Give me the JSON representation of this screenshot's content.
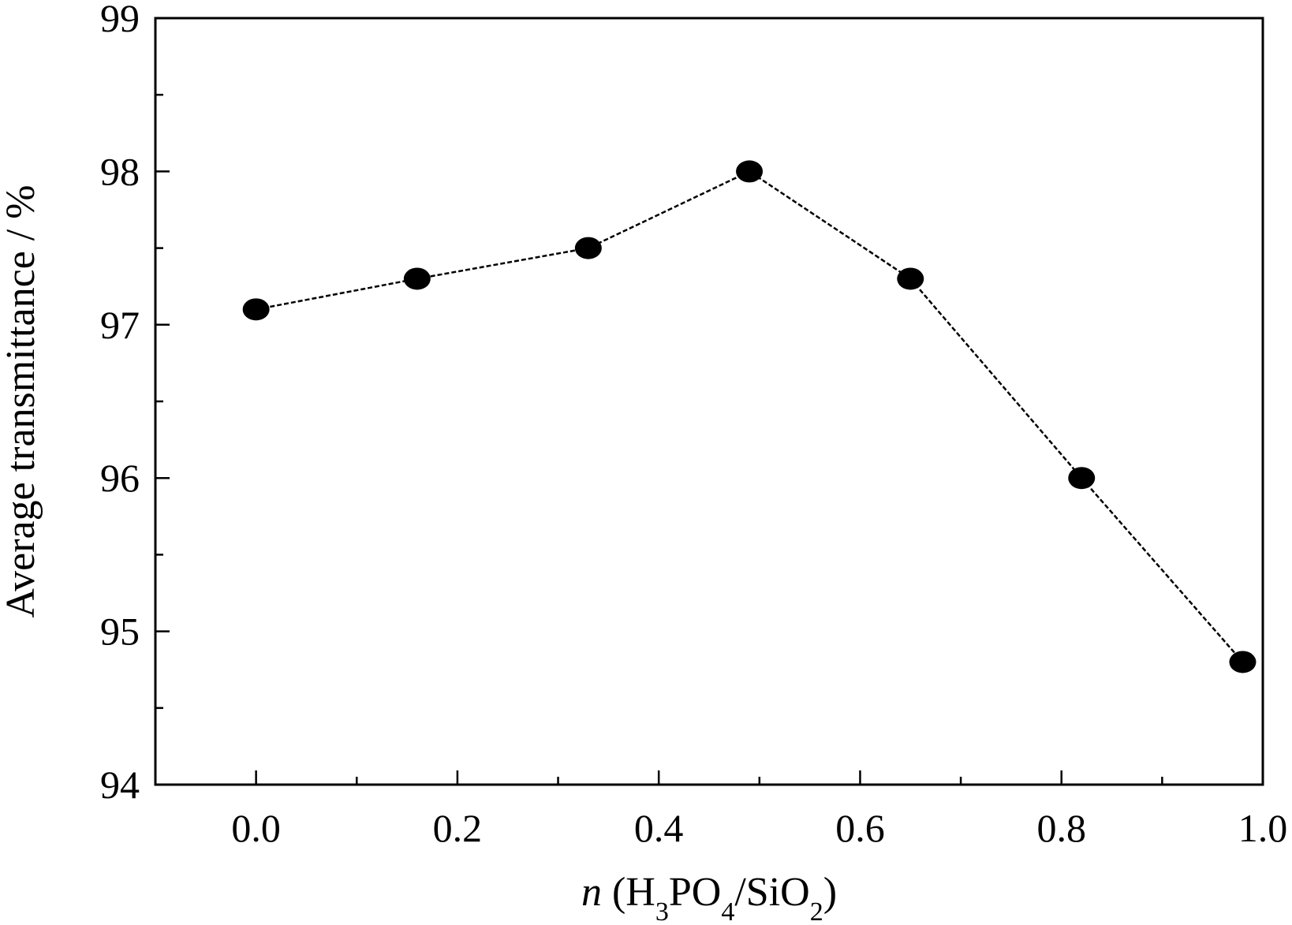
{
  "chart_data": {
    "type": "line",
    "title": "",
    "xlabel": {
      "italic": "n",
      "parts": [
        {
          "text": " (H",
          "sub": false
        },
        {
          "text": "3",
          "sub": true
        },
        {
          "text": "PO",
          "sub": false
        },
        {
          "text": "4",
          "sub": true
        },
        {
          "text": "/SiO",
          "sub": false
        },
        {
          "text": "2",
          "sub": true
        },
        {
          "text": ")",
          "sub": false
        }
      ]
    },
    "ylabel": "Average transmittance / %",
    "xlim": [
      -0.1,
      1.0
    ],
    "ylim": [
      94,
      99
    ],
    "x_ticks": [
      "0.0",
      "0.2",
      "0.4",
      "0.6",
      "0.8",
      "1.0"
    ],
    "x_tick_values": [
      0.0,
      0.2,
      0.4,
      0.6,
      0.8,
      1.0
    ],
    "x_minor_ticks": [
      0.1,
      0.3,
      0.5,
      0.7,
      0.9
    ],
    "y_ticks": [
      "94",
      "95",
      "96",
      "97",
      "98",
      "99"
    ],
    "y_tick_values": [
      94,
      95,
      96,
      97,
      98,
      99
    ],
    "y_minor_ticks": [
      94.5,
      95.5,
      96.5,
      97.5,
      98.5
    ],
    "grid": false,
    "series": [
      {
        "x": [
          0.0,
          0.16,
          0.33,
          0.49,
          0.65,
          0.82,
          0.98
        ],
        "y": [
          97.1,
          97.3,
          97.5,
          98.0,
          97.3,
          96.0,
          94.8
        ],
        "color": "#000000",
        "line_style": "dashed",
        "marker": "filled-circle"
      }
    ]
  }
}
